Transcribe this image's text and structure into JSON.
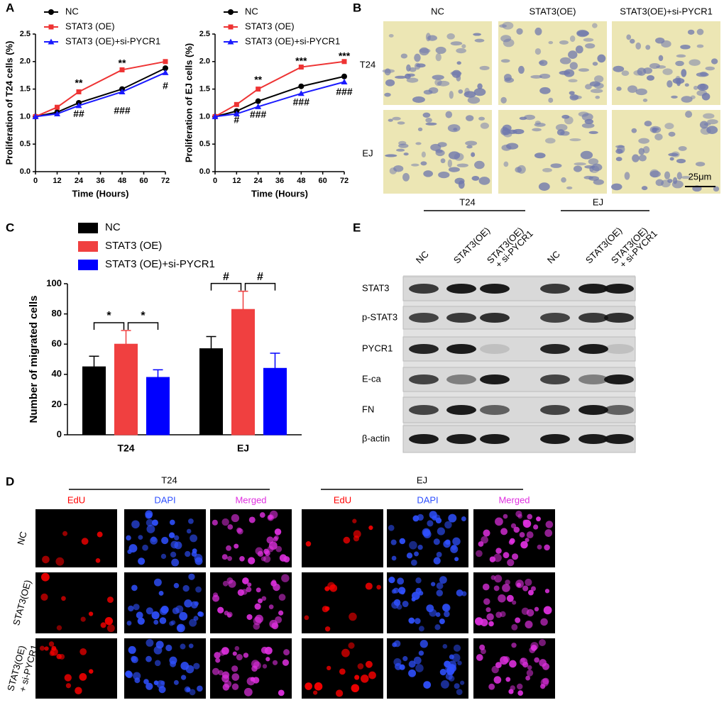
{
  "panel_labels": [
    "A",
    "B",
    "C",
    "D",
    "E"
  ],
  "chart_data": [
    {
      "type": "line",
      "y_label": "Proliferation of T24 cells (%)",
      "x_label": "Time (Hours)",
      "x": [
        0,
        12,
        24,
        48,
        72
      ],
      "xlim": [
        0,
        72
      ],
      "xticks": [
        0,
        12,
        24,
        36,
        48,
        60,
        72
      ],
      "ylim": [
        0,
        2.5
      ],
      "yticks": [
        {
          "value": 0,
          "label": "0.0"
        },
        0.5,
        {
          "value": 1,
          "label": "1.0"
        },
        1.5,
        {
          "value": 2,
          "label": "2.0"
        },
        2.5
      ],
      "series": [
        {
          "name": "NC",
          "color": "#000000",
          "marker": "circle",
          "values": [
            1,
            1.08,
            1.25,
            1.5,
            1.88
          ]
        },
        {
          "name": "STAT3 (OE)",
          "color": "#ee3333",
          "marker": "square",
          "values": [
            1,
            1.17,
            1.45,
            1.85,
            2.0
          ]
        },
        {
          "name": "STAT3 (OE)+si-PYCR1",
          "color": "#1a1aff",
          "marker": "triangle",
          "values": [
            1,
            1.05,
            1.2,
            1.45,
            1.8
          ]
        }
      ],
      "annotations": [
        {
          "text": "**",
          "x": 24,
          "y": 1.6
        },
        {
          "text": "**",
          "x": 48,
          "y": 1.96
        },
        {
          "text": "##",
          "x": 24,
          "y": 1.04
        },
        {
          "text": "###",
          "x": 48,
          "y": 1.1
        },
        {
          "text": "#",
          "x": 72,
          "y": 1.55
        }
      ]
    },
    {
      "type": "line",
      "y_label": "Proliferation of EJ cells (%)",
      "x_label": "Time (Hours)",
      "x": [
        0,
        12,
        24,
        48,
        72
      ],
      "xlim": [
        0,
        72
      ],
      "xticks": [
        0,
        12,
        24,
        36,
        48,
        60,
        72
      ],
      "ylim": [
        0,
        2.5
      ],
      "yticks": [
        {
          "value": 0,
          "label": "0.0"
        },
        0.5,
        {
          "value": 1,
          "label": "1.0"
        },
        1.5,
        {
          "value": 2,
          "label": "2.0"
        },
        2.5
      ],
      "series": [
        {
          "name": "NC",
          "color": "#000000",
          "marker": "circle",
          "values": [
            1,
            1.1,
            1.28,
            1.55,
            1.73
          ]
        },
        {
          "name": "STAT3 (OE)",
          "color": "#ee3333",
          "marker": "square",
          "values": [
            1,
            1.22,
            1.5,
            1.9,
            2.0
          ]
        },
        {
          "name": "STAT3 (OE)+si-PYCR1",
          "color": "#1a1aff",
          "marker": "triangle",
          "values": [
            1,
            1.05,
            1.18,
            1.42,
            1.63
          ]
        }
      ],
      "annotations": [
        {
          "text": "**",
          "x": 24,
          "y": 1.66
        },
        {
          "text": "***",
          "x": 48,
          "y": 2.0
        },
        {
          "text": "***",
          "x": 72,
          "y": 2.09
        },
        {
          "text": "#",
          "x": 12,
          "y": 0.93
        },
        {
          "text": "###",
          "x": 24,
          "y": 1.03
        },
        {
          "text": "###",
          "x": 48,
          "y": 1.25
        },
        {
          "text": "###",
          "x": 72,
          "y": 1.44
        }
      ]
    },
    {
      "type": "bar",
      "y_label": "Number of migrated cells",
      "categories": [
        "T24",
        "EJ"
      ],
      "ylim": [
        0,
        100
      ],
      "yticks": [
        0,
        20,
        40,
        60,
        80,
        100
      ],
      "series": [
        {
          "name": "NC",
          "color": "#000000",
          "values": [
            45,
            57
          ],
          "errors": [
            7,
            8
          ]
        },
        {
          "name": "STAT3 (OE)",
          "color": "#f04040",
          "values": [
            60,
            83
          ],
          "errors": [
            9,
            12
          ]
        },
        {
          "name": "STAT3 (OE)+si-PYCR1",
          "color": "#0000ff",
          "values": [
            38,
            44
          ],
          "errors": [
            5,
            10
          ]
        }
      ],
      "annotations": [
        [
          "*",
          "*"
        ],
        [
          "#",
          "#"
        ]
      ]
    }
  ],
  "micrographs": {
    "columns": [
      "NC",
      "STAT3(OE)",
      "STAT3(OE)+si-PYCR1"
    ],
    "rows": [
      "T24",
      "EJ"
    ],
    "scale_bar": "25μm"
  },
  "western_blot": {
    "groups": [
      "T24",
      "EJ"
    ],
    "lanes": [
      [
        "NC"
      ],
      [
        "STAT3(OE)"
      ],
      [
        "STAT3(OE)",
        "+ si-PYCR1"
      ]
    ],
    "proteins": [
      "STAT3",
      "p-STAT3",
      "PYCR1",
      "E-ca",
      "FN",
      "β-actin"
    ]
  },
  "edu_staining": {
    "groups": [
      "T24",
      "EJ"
    ],
    "channels": [
      {
        "name": "EdU",
        "color": "#ff0000"
      },
      {
        "name": "DAPI",
        "color": "#2f50ff"
      },
      {
        "name": "Merged",
        "color": "#e030e0"
      }
    ],
    "rows": [
      [
        "NC"
      ],
      [
        "STAT3(OE)"
      ],
      [
        "STAT3(OE)",
        "+ si-PYCR1"
      ]
    ]
  }
}
